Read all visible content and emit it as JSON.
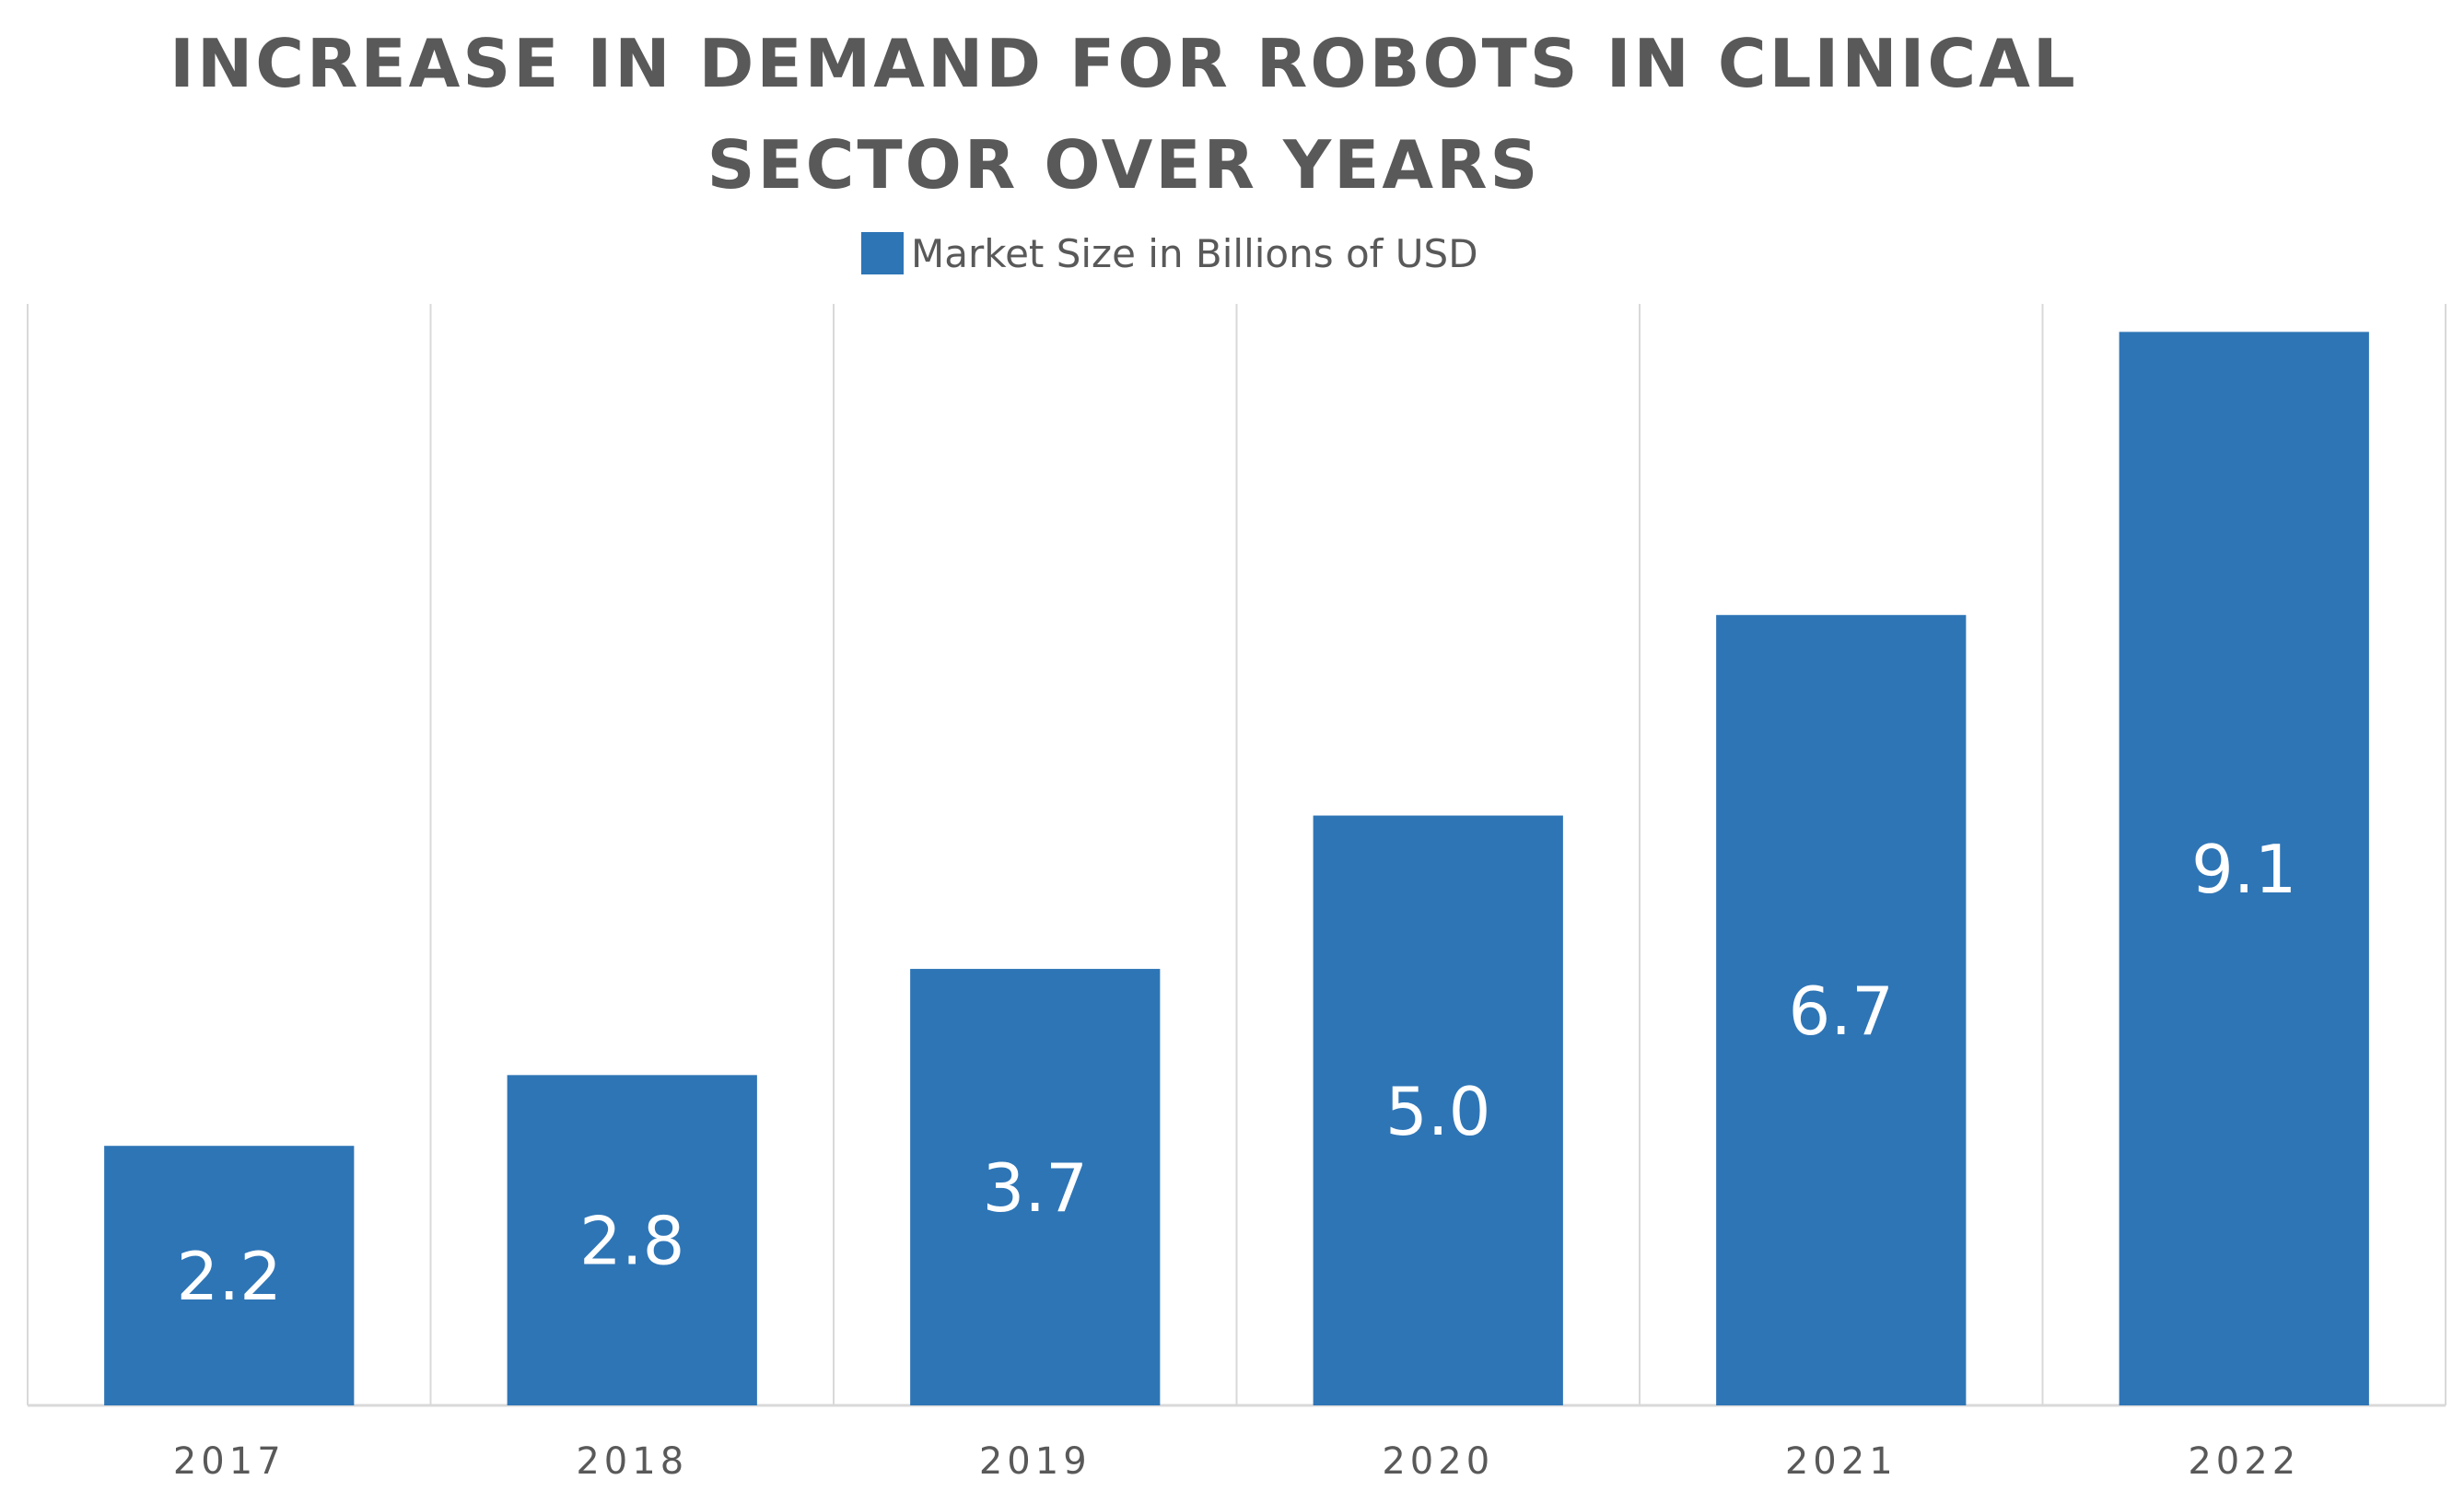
{
  "chart_data": {
    "type": "bar",
    "title_lines": [
      "INCREASE IN DEMAND FOR ROBOTS IN CLINICAL",
      "SECTOR OVER YEARS"
    ],
    "legend": "Market Size in Billions of USD",
    "categories": [
      "2017",
      "2018",
      "2019",
      "2020",
      "2021",
      "2022"
    ],
    "series": [
      {
        "name": "Market Size in Billions of USD",
        "values": [
          2.2,
          2.8,
          3.7,
          5.0,
          6.7,
          9.1
        ],
        "labels": [
          "2.2",
          "2.8",
          "3.7",
          "5.0",
          "6.7",
          "9.1"
        ],
        "color": "#2e75b6"
      }
    ],
    "xlabel": "",
    "ylabel": "",
    "ylim": [
      0,
      9.22
    ],
    "grid": "vertical category separators",
    "legend_position": "top"
  },
  "colors": {
    "bar": "#2e75b6",
    "text": "#595959",
    "grid": "#d9d9d9"
  }
}
